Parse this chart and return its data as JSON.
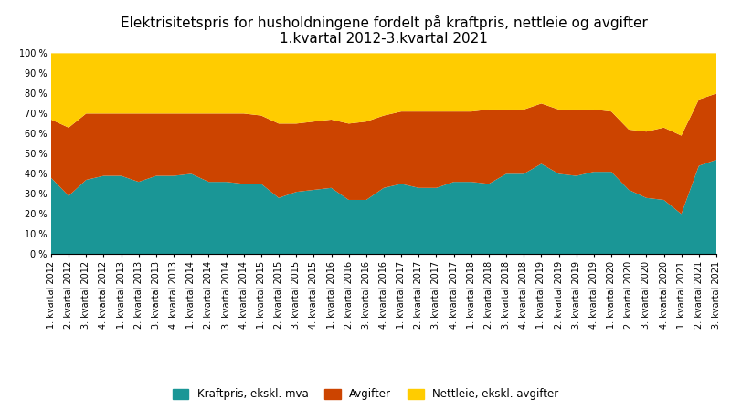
{
  "title": "Elektrisitetspris for husholdningene fordelt på kraftpris, nettleie og avgifter\n1.kvartal 2012-3.kvartal 2021",
  "categories": [
    "1. kvartal 2012",
    "2. kvartal 2012",
    "3. kvartal 2012",
    "4. kvartal 2012",
    "1. kvartal 2013",
    "2. kvartal 2013",
    "3. kvartal 2013",
    "4. kvartal 2013",
    "1. kvartal 2014",
    "2. kvartal 2014",
    "3. kvartal 2014",
    "4. kvartal 2014",
    "1. kvartal 2015",
    "2. kvartal 2015",
    "3. kvartal 2015",
    "4. kvartal 2015",
    "1. kvartal 2016",
    "2. kvartal 2016",
    "3. kvartal 2016",
    "4. kvartal 2016",
    "1. kvartal 2017",
    "2. kvartal 2017",
    "3. kvartal 2017",
    "4. kvartal 2017",
    "1. kvartal 2018",
    "2. kvartal 2018",
    "3. kvartal 2018",
    "4. kvartal 2018",
    "1. kvartal 2019",
    "2. kvartal 2019",
    "3. kvartal 2019",
    "4. kvartal 2019",
    "1. kvartal 2020",
    "2. kvartal 2020",
    "3. kvartal 2020",
    "4. kvartal 2020",
    "1. kvartal 2021",
    "2. kvartal 2021",
    "3. kvartal 2021"
  ],
  "kraftpris": [
    38,
    29,
    37,
    39,
    39,
    36,
    39,
    39,
    40,
    36,
    36,
    35,
    35,
    28,
    31,
    32,
    33,
    27,
    27,
    33,
    35,
    33,
    33,
    36,
    36,
    35,
    40,
    40,
    45,
    40,
    39,
    41,
    41,
    32,
    28,
    27,
    20,
    44,
    47
  ],
  "avgifter": [
    29,
    34,
    33,
    31,
    31,
    34,
    31,
    31,
    30,
    34,
    34,
    35,
    34,
    37,
    34,
    34,
    34,
    38,
    39,
    36,
    36,
    38,
    38,
    35,
    35,
    37,
    32,
    32,
    30,
    32,
    33,
    31,
    30,
    30,
    33,
    36,
    39,
    33,
    33
  ],
  "nettleie": [
    33,
    37,
    30,
    30,
    30,
    30,
    30,
    30,
    30,
    30,
    30,
    30,
    31,
    35,
    35,
    34,
    33,
    35,
    34,
    31,
    29,
    29,
    29,
    29,
    29,
    28,
    28,
    28,
    25,
    28,
    28,
    28,
    29,
    38,
    39,
    37,
    41,
    23,
    20
  ],
  "colors": {
    "kraftpris": "#1a9696",
    "avgifter": "#cc4400",
    "nettleie": "#ffcc00"
  },
  "legend_labels": [
    "Kraftpris, ekskl. mva",
    "Avgifter",
    "Nettleie, ekskl. avgifter"
  ],
  "ytick_labels": [
    "0 %",
    "10 %",
    "20 %",
    "30 %",
    "40 %",
    "50 %",
    "60 %",
    "70 %",
    "80 %",
    "90 %",
    "100 %"
  ],
  "background_color": "#ffffff",
  "title_fontsize": 11,
  "legend_fontsize": 8.5,
  "tick_fontsize": 7
}
